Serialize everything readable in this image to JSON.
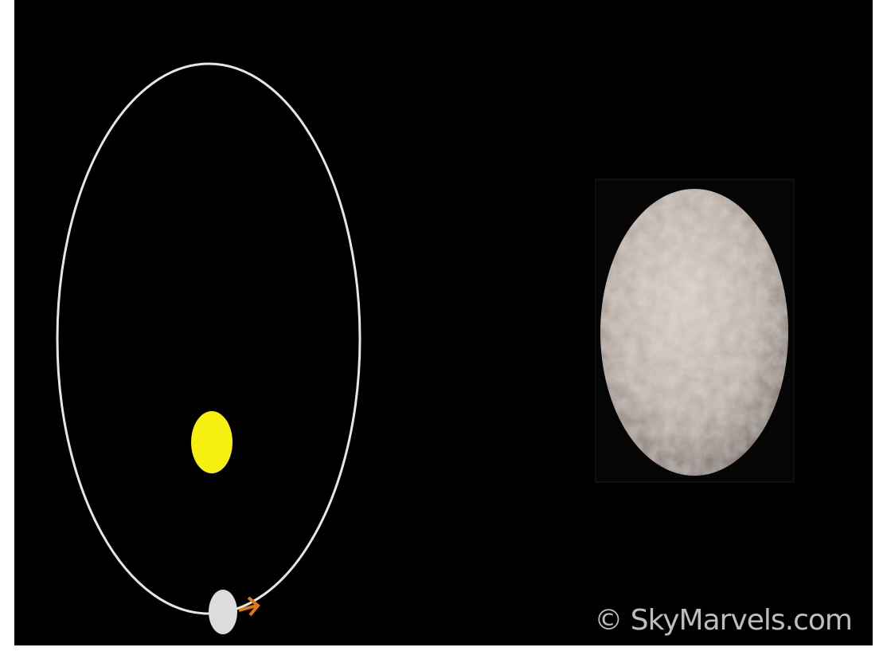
{
  "watermark": "© SkyMarvels.com"
}
